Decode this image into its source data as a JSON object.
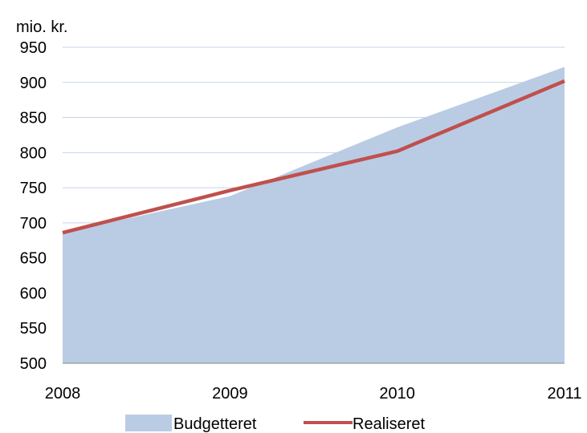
{
  "chart_data": {
    "type": "area",
    "title": "",
    "ylabel": "mio. kr.",
    "xlabel": "",
    "x": [
      2008,
      2009,
      2010,
      2011
    ],
    "x_ticks": [
      "2008",
      "2009",
      "2010",
      "2011"
    ],
    "y_ticks": [
      "500",
      "550",
      "600",
      "650",
      "700",
      "750",
      "800",
      "850",
      "900",
      "950"
    ],
    "ylim": [
      500,
      950
    ],
    "grid": "horizontal",
    "legend_position": "bottom",
    "series": [
      {
        "name": "Budgetteret",
        "kind": "area",
        "color": "#b9cce4",
        "values": [
          686,
          738,
          836,
          922
        ]
      },
      {
        "name": "Realiseret",
        "kind": "line",
        "color": "#c0504d",
        "values": [
          686,
          746,
          802,
          902
        ]
      }
    ]
  }
}
